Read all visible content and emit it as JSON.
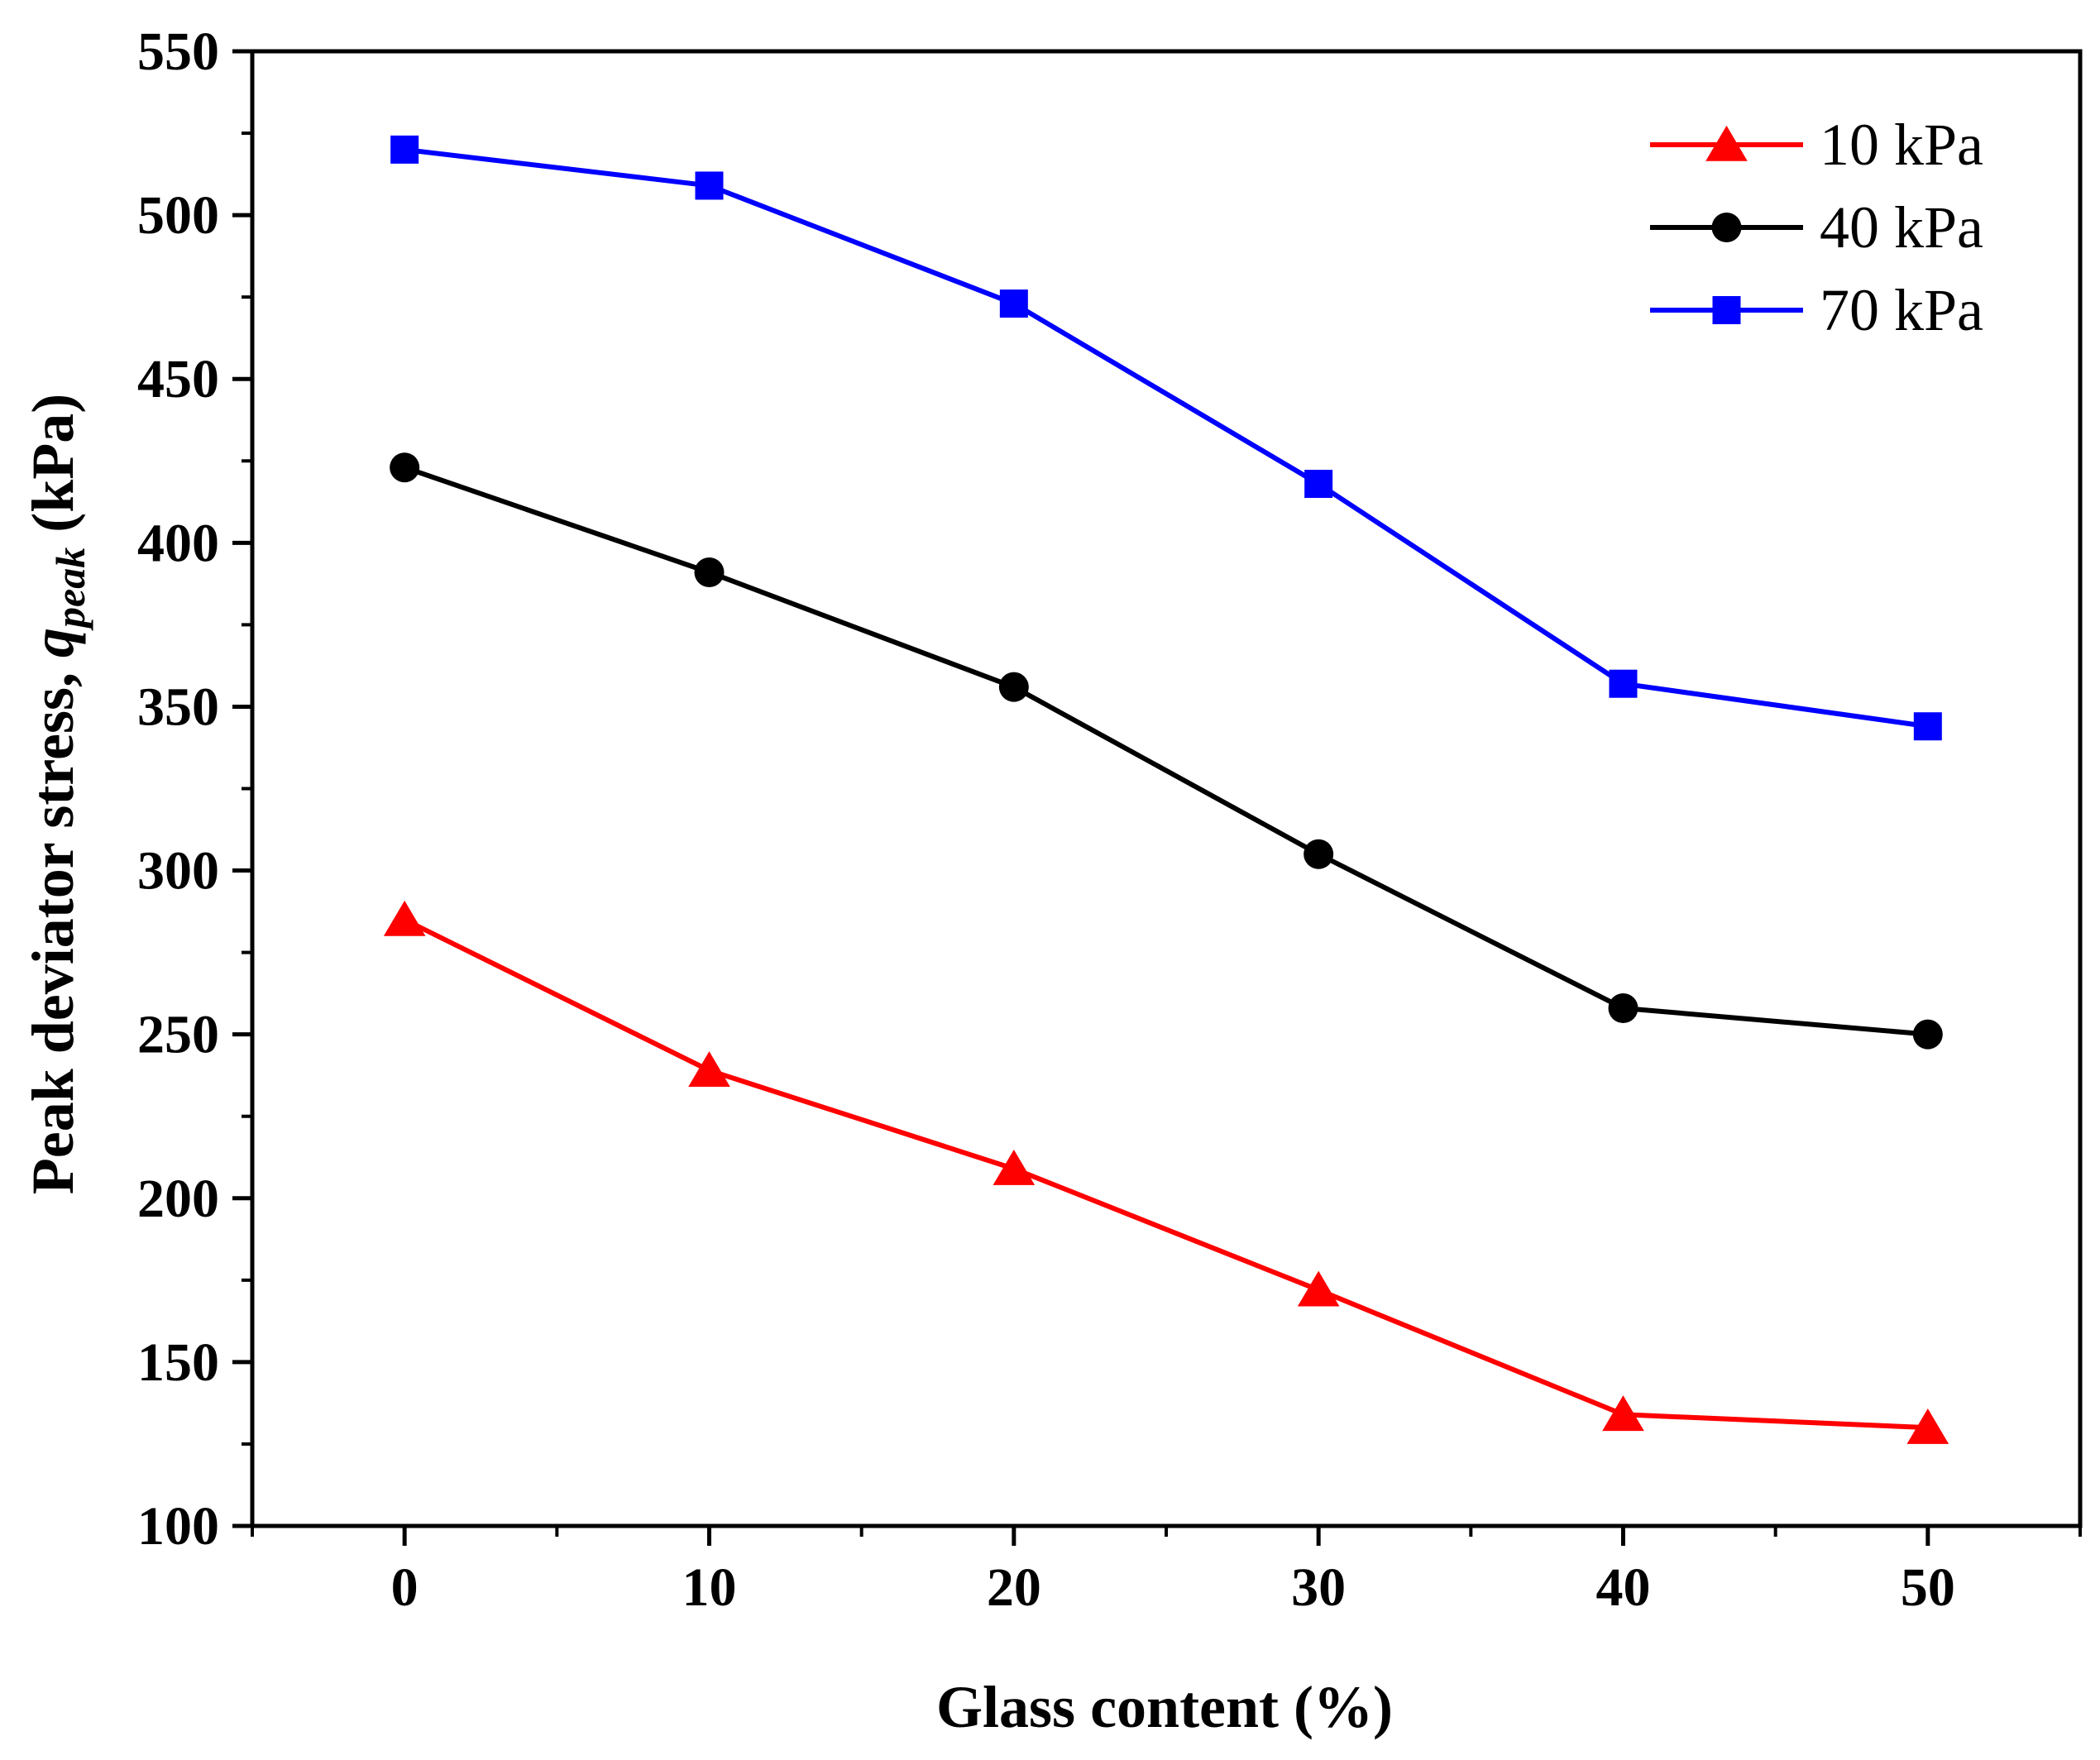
{
  "chart_data": {
    "type": "line",
    "title": "",
    "xlabel": "Glass content (%)",
    "ylabel": {
      "main": "Peak deviator stress, ",
      "symbol": "q",
      "subscript": "peak",
      "unit": " (kPa)"
    },
    "x": [
      0,
      10,
      20,
      30,
      40,
      50
    ],
    "xlim": [
      -5,
      55
    ],
    "ylim": [
      100,
      550
    ],
    "x_ticks": [
      0,
      10,
      20,
      30,
      40,
      50
    ],
    "y_ticks": [
      100,
      150,
      200,
      250,
      300,
      350,
      400,
      450,
      500,
      550
    ],
    "x_minor_ticks": [
      -5,
      5,
      15,
      25,
      35,
      45,
      55
    ],
    "y_minor_ticks": [
      125,
      175,
      225,
      275,
      325,
      375,
      425,
      475,
      525
    ],
    "legend_position": "top-right",
    "grid": false,
    "series": [
      {
        "name": "10 kPa",
        "color": "#ff0000",
        "marker": "triangle",
        "values": [
          285,
          239,
          209,
          172,
          134,
          130
        ]
      },
      {
        "name": "40 kPa",
        "color": "#000000",
        "marker": "circle",
        "values": [
          423,
          391,
          356,
          305,
          258,
          250
        ]
      },
      {
        "name": "70 kPa",
        "color": "#0000ff",
        "marker": "square",
        "values": [
          520,
          509,
          473,
          418,
          357,
          344
        ]
      }
    ]
  }
}
